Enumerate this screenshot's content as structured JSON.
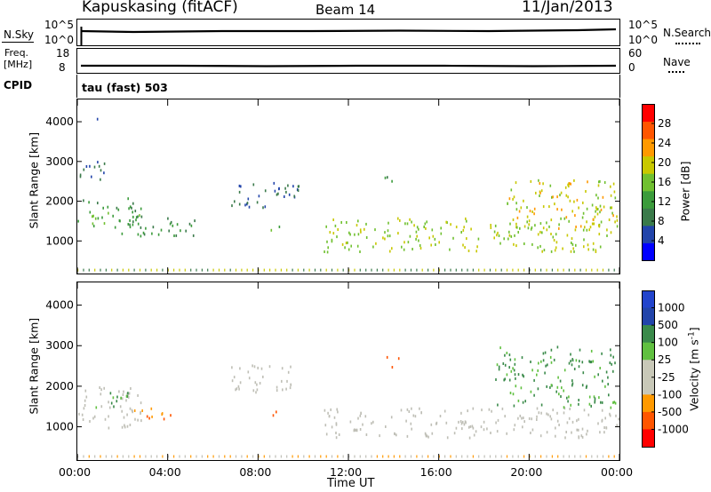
{
  "header": {
    "station": "Kapuskasing (fitACF)",
    "beam": "Beam 14",
    "date": "11/Jan/2013"
  },
  "strips": {
    "nsky_label": "N.Sky",
    "nsky_ticks": [
      "10^5",
      "10^0"
    ],
    "nsearch_label": "N.Search",
    "nsearch_ticks": [
      "10^5",
      "10^0"
    ],
    "freq_label_1": "Freq.",
    "freq_label_2": "[MHz]",
    "freq_ticks": [
      "18",
      "8"
    ],
    "nave_label": "Nave",
    "nave_ticks": [
      "60",
      "0"
    ],
    "cpid_label": "CPID",
    "cpid_value": "tau (fast) 503"
  },
  "colors": {
    "power": [
      "#0000ff",
      "#2244aa",
      "#3a7a4a",
      "#3b9b3b",
      "#70c030",
      "#c8c800",
      "#ff9900",
      "#ff5500",
      "#ff0000"
    ],
    "velocity": [
      "#ff0000",
      "#ff5500",
      "#ff9900",
      "#ffcc00",
      "#c8c8b8",
      "#c8c8b8",
      "#60c040",
      "#3a8a4a",
      "#2244aa",
      "#2244cc"
    ],
    "ground_scatter": "#bfbfb6"
  },
  "chart_data": [
    {
      "type": "heatmap",
      "name": "power",
      "xlabel": "",
      "ylabel": "Slant Range [km]",
      "xlim_hours": [
        0,
        24
      ],
      "ylim": [
        180,
        4560
      ],
      "yticks": [
        1000,
        2000,
        3000,
        4000
      ],
      "xticks": [
        0,
        4,
        8,
        12,
        16,
        20,
        24
      ],
      "colorbar": {
        "label": "Power [dB]",
        "range": [
          0,
          32
        ],
        "ticks": [
          "4",
          "8",
          "12",
          "16",
          "20",
          "24",
          "28"
        ]
      },
      "features": [
        {
          "t": [
            0.0,
            2.8
          ],
          "r": [
            1300,
            2100
          ],
          "level": 12
        },
        {
          "t": [
            0.1,
            1.4
          ],
          "r": [
            2500,
            3100
          ],
          "level": 6
        },
        {
          "t": [
            0.7,
            0.9
          ],
          "r": [
            4050,
            4200
          ],
          "level": 6
        },
        {
          "t": [
            1.5,
            5.2
          ],
          "r": [
            1150,
            1650
          ],
          "level": 10
        },
        {
          "t": [
            6.8,
            9.8
          ],
          "r": [
            1850,
            2550
          ],
          "level": 6
        },
        {
          "t": [
            8.5,
            9.5
          ],
          "r": [
            1300,
            1400
          ],
          "level": 12
        },
        {
          "t": [
            10.9,
            23.9
          ],
          "r": [
            750,
            1600
          ],
          "level": 18
        },
        {
          "t": [
            13.5,
            14.2
          ],
          "r": [
            2450,
            2750
          ],
          "level": 10
        },
        {
          "t": [
            19.0,
            24.0
          ],
          "r": [
            1300,
            2600
          ],
          "level": 20
        }
      ]
    },
    {
      "type": "heatmap",
      "name": "velocity",
      "xlabel": "Time UT",
      "ylabel": "Slant Range [km]",
      "xlim_hours": [
        0,
        24
      ],
      "ylim": [
        180,
        4560
      ],
      "xtick_labels": [
        "00:00",
        "04:00",
        "08:00",
        "12:00",
        "16:00",
        "20:00",
        "00:00"
      ],
      "yticks": [
        1000,
        2000,
        3000,
        4000
      ],
      "colorbar": {
        "label": "Velocity [m s^-1]",
        "ticks": [
          "1000",
          "500",
          "100",
          "25",
          "-25",
          "-100",
          "-500",
          "-1000"
        ]
      },
      "features": [
        {
          "t": [
            0.0,
            2.8
          ],
          "r": [
            1000,
            2100
          ],
          "kind": "ground"
        },
        {
          "t": [
            0.8,
            2.5
          ],
          "r": [
            1500,
            1900
          ],
          "velocity": 100
        },
        {
          "t": [
            2.5,
            4.5
          ],
          "r": [
            1200,
            1500
          ],
          "velocity": -100
        },
        {
          "t": [
            6.8,
            9.8
          ],
          "r": [
            1850,
            2550
          ],
          "kind": "ground"
        },
        {
          "t": [
            8.5,
            9.5
          ],
          "r": [
            1300,
            1400
          ],
          "velocity": -300
        },
        {
          "t": [
            10.9,
            24.0
          ],
          "r": [
            750,
            1500
          ],
          "kind": "ground"
        },
        {
          "t": [
            13.5,
            14.2
          ],
          "r": [
            2450,
            2750
          ],
          "velocity": -300
        },
        {
          "t": [
            18.5,
            23.8
          ],
          "r": [
            1500,
            3000
          ],
          "velocity": 150
        }
      ]
    }
  ]
}
